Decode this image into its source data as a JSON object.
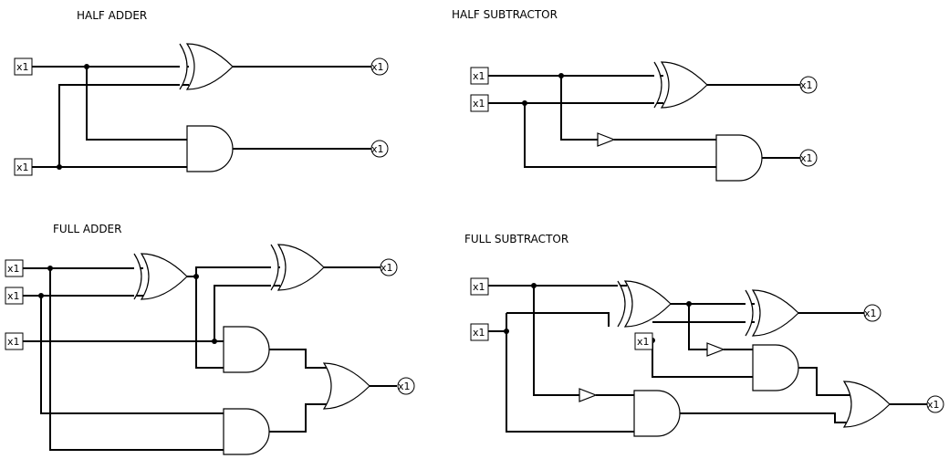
{
  "titles": {
    "half_adder": "HALF ADDER",
    "half_subtractor": "HALF SUBTRACTOR",
    "full_adder": "FULL ADDER",
    "full_subtractor": "FULL SUBTRACTOR"
  },
  "pin_label": "x1"
}
